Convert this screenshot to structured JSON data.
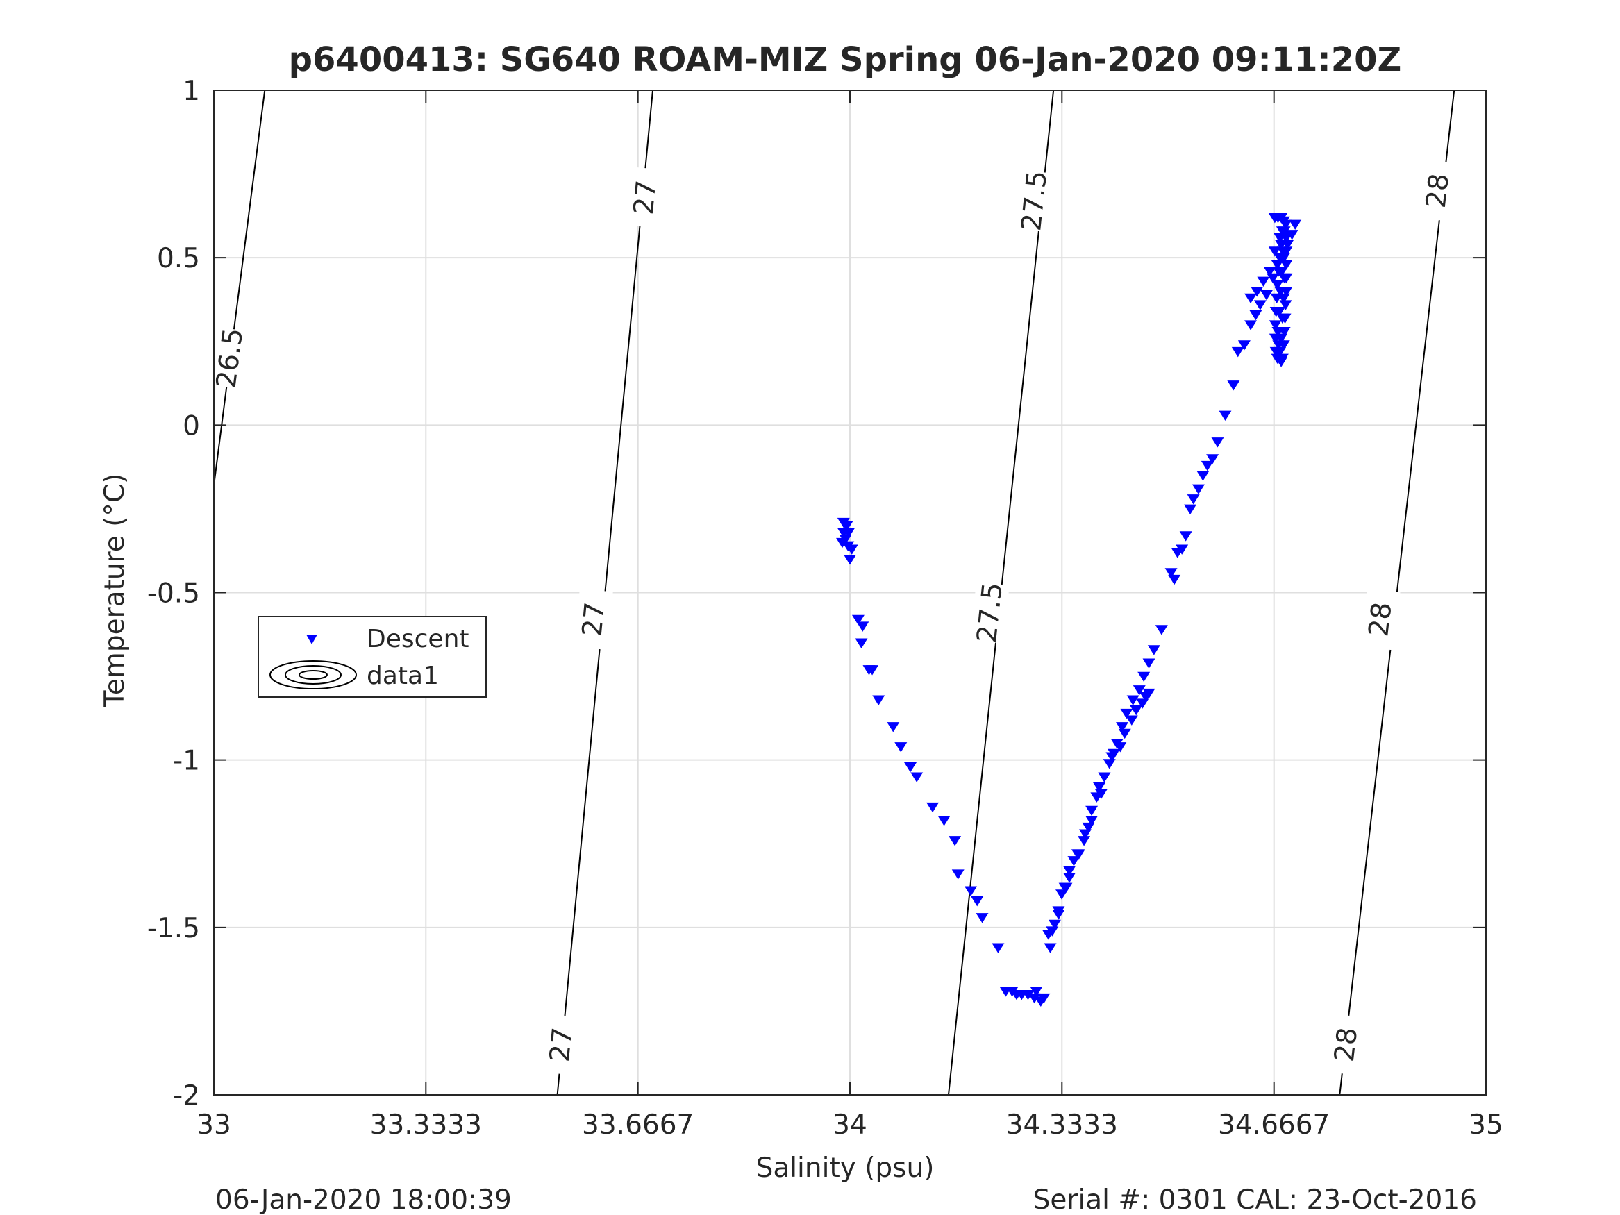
{
  "chart_data": {
    "type": "scatter",
    "title": "p6400413: SG640 ROAM-MIZ Spring 06-Jan-2020 09:11:20Z",
    "xlabel": "Salinity (psu)",
    "ylabel": "Temperature (°C)",
    "xlim": [
      33,
      35
    ],
    "ylim": [
      -2,
      1
    ],
    "x_ticks": [
      "33",
      "33.3333",
      "33.6667",
      "34",
      "34.3333",
      "34.6667",
      "35"
    ],
    "y_ticks": [
      "-2",
      "-1.5",
      "-1",
      "-0.5",
      "0",
      "0.5",
      "1"
    ],
    "grid": true,
    "legend": {
      "position": "left",
      "entries": [
        "Descent",
        "data1"
      ]
    },
    "footer_left": "06-Jan-2020 18:00:39",
    "footer_right": "Serial #: 0301  CAL: 23-Oct-2016",
    "colors": {
      "descent": "#0000ff",
      "contour": "#000000",
      "grid": "#dfdfdf"
    },
    "contours": [
      {
        "level": "26.5",
        "points": [
          [
            33.0,
            -0.18
          ],
          [
            33.08,
            1.0
          ]
        ],
        "labels": [
          [
            33.025,
            0.2
          ]
        ]
      },
      {
        "level": "27",
        "points": [
          [
            33.54,
            -2.0
          ],
          [
            33.69,
            1.0
          ]
        ],
        "labels": [
          [
            33.546,
            -1.85
          ],
          [
            33.597,
            -0.58
          ],
          [
            33.678,
            0.68
          ]
        ]
      },
      {
        "level": "27.5",
        "points": [
          [
            34.155,
            -2.0
          ],
          [
            34.32,
            1.0
          ]
        ],
        "labels": [
          [
            34.22,
            -0.56
          ],
          [
            34.29,
            0.67
          ]
        ]
      },
      {
        "level": "28",
        "points": [
          [
            34.77,
            -2.0
          ],
          [
            34.95,
            1.0
          ]
        ],
        "labels": [
          [
            34.78,
            -1.85
          ],
          [
            34.834,
            -0.58
          ],
          [
            34.924,
            0.7
          ]
        ]
      }
    ],
    "series": [
      {
        "name": "Descent",
        "marker": "triangle-down",
        "points": [
          [
            33.99,
            -0.29
          ],
          [
            33.995,
            -0.3
          ],
          [
            33.99,
            -0.32
          ],
          [
            33.998,
            -0.32
          ],
          [
            33.993,
            -0.34
          ],
          [
            33.997,
            -0.36
          ],
          [
            33.988,
            -0.35
          ],
          [
            34.003,
            -0.37
          ],
          [
            34.0,
            -0.4
          ],
          [
            34.013,
            -0.58
          ],
          [
            34.02,
            -0.6
          ],
          [
            34.018,
            -0.65
          ],
          [
            34.03,
            -0.73
          ],
          [
            34.035,
            -0.73
          ],
          [
            34.045,
            -0.82
          ],
          [
            34.068,
            -0.9
          ],
          [
            34.08,
            -0.96
          ],
          [
            34.095,
            -1.02
          ],
          [
            34.105,
            -1.05
          ],
          [
            34.13,
            -1.14
          ],
          [
            34.148,
            -1.18
          ],
          [
            34.165,
            -1.24
          ],
          [
            34.17,
            -1.34
          ],
          [
            34.19,
            -1.39
          ],
          [
            34.2,
            -1.42
          ],
          [
            34.208,
            -1.47
          ],
          [
            34.233,
            -1.56
          ],
          [
            34.245,
            -1.69
          ],
          [
            34.255,
            -1.69
          ],
          [
            34.262,
            -1.7
          ],
          [
            34.27,
            -1.7
          ],
          [
            34.28,
            -1.7
          ],
          [
            34.29,
            -1.71
          ],
          [
            34.3,
            -1.72
          ],
          [
            34.293,
            -1.69
          ],
          [
            34.305,
            -1.71
          ],
          [
            34.312,
            -1.52
          ],
          [
            34.318,
            -1.51
          ],
          [
            34.322,
            -1.49
          ],
          [
            34.328,
            -1.45
          ],
          [
            34.333,
            -1.4
          ],
          [
            34.34,
            -1.38
          ],
          [
            34.345,
            -1.35
          ],
          [
            34.352,
            -1.3
          ],
          [
            34.36,
            -1.28
          ],
          [
            34.368,
            -1.24
          ],
          [
            34.375,
            -1.2
          ],
          [
            34.38,
            -1.15
          ],
          [
            34.388,
            -1.11
          ],
          [
            34.392,
            -1.08
          ],
          [
            34.4,
            -1.05
          ],
          [
            34.408,
            -1.01
          ],
          [
            34.415,
            -0.98
          ],
          [
            34.42,
            -0.95
          ],
          [
            34.428,
            -0.9
          ],
          [
            34.435,
            -0.86
          ],
          [
            34.445,
            -0.82
          ],
          [
            34.455,
            -0.79
          ],
          [
            34.462,
            -0.75
          ],
          [
            34.47,
            -0.71
          ],
          [
            34.478,
            -0.67
          ],
          [
            34.49,
            -0.61
          ],
          [
            34.47,
            -0.8
          ],
          [
            34.465,
            -0.81
          ],
          [
            34.46,
            -0.83
          ],
          [
            34.45,
            -0.85
          ],
          [
            34.443,
            -0.88
          ],
          [
            34.432,
            -0.92
          ],
          [
            34.425,
            -0.96
          ],
          [
            34.412,
            -0.99
          ],
          [
            34.4,
            -1.05
          ],
          [
            34.395,
            -1.1
          ],
          [
            34.38,
            -1.18
          ],
          [
            34.37,
            -1.22
          ],
          [
            34.358,
            -1.28
          ],
          [
            34.345,
            -1.33
          ],
          [
            34.338,
            -1.38
          ],
          [
            34.328,
            -1.46
          ],
          [
            34.315,
            -1.56
          ],
          [
            34.505,
            -0.44
          ],
          [
            34.51,
            -0.46
          ],
          [
            34.515,
            -0.38
          ],
          [
            34.522,
            -0.37
          ],
          [
            34.528,
            -0.33
          ],
          [
            34.535,
            -0.25
          ],
          [
            34.54,
            -0.22
          ],
          [
            34.548,
            -0.19
          ],
          [
            34.555,
            -0.15
          ],
          [
            34.562,
            -0.12
          ],
          [
            34.57,
            -0.1
          ],
          [
            34.578,
            -0.05
          ],
          [
            34.59,
            0.03
          ],
          [
            34.603,
            0.12
          ],
          [
            34.61,
            0.22
          ],
          [
            34.62,
            0.24
          ],
          [
            34.63,
            0.3
          ],
          [
            34.638,
            0.33
          ],
          [
            34.645,
            0.36
          ],
          [
            34.655,
            0.39
          ],
          [
            34.665,
            0.44
          ],
          [
            34.672,
            0.48
          ],
          [
            34.68,
            0.5
          ],
          [
            34.688,
            0.54
          ],
          [
            34.695,
            0.57
          ],
          [
            34.7,
            0.6
          ],
          [
            34.66,
            0.46
          ],
          [
            34.668,
            0.52
          ],
          [
            34.676,
            0.56
          ],
          [
            34.63,
            0.38
          ],
          [
            34.64,
            0.4
          ],
          [
            34.65,
            0.43
          ],
          [
            34.668,
            0.62
          ],
          [
            34.673,
            0.62
          ],
          [
            34.678,
            0.62
          ],
          [
            34.682,
            0.61
          ],
          [
            34.685,
            0.6
          ],
          [
            34.686,
            0.56
          ],
          [
            34.686,
            0.52
          ],
          [
            34.686,
            0.48
          ],
          [
            34.686,
            0.44
          ],
          [
            34.686,
            0.4
          ],
          [
            34.685,
            0.36
          ],
          [
            34.684,
            0.32
          ],
          [
            34.683,
            0.28
          ],
          [
            34.682,
            0.24
          ],
          [
            34.68,
            0.2
          ],
          [
            34.678,
            0.19
          ],
          [
            34.672,
            0.2
          ],
          [
            34.67,
            0.22
          ],
          [
            34.669,
            0.26
          ],
          [
            34.669,
            0.3
          ],
          [
            34.67,
            0.34
          ],
          [
            34.671,
            0.38
          ],
          [
            34.672,
            0.42
          ],
          [
            34.674,
            0.46
          ],
          [
            34.676,
            0.5
          ],
          [
            34.678,
            0.54
          ],
          [
            34.68,
            0.58
          ],
          [
            34.682,
            0.5
          ],
          [
            34.683,
            0.44
          ],
          [
            34.682,
            0.38
          ],
          [
            34.68,
            0.32
          ],
          [
            34.678,
            0.26
          ],
          [
            34.676,
            0.22
          ],
          [
            34.674,
            0.24
          ],
          [
            34.673,
            0.28
          ],
          [
            34.675,
            0.34
          ],
          [
            34.677,
            0.4
          ],
          [
            34.679,
            0.46
          ],
          [
            34.681,
            0.52
          ],
          [
            34.683,
            0.58
          ]
        ]
      }
    ]
  }
}
